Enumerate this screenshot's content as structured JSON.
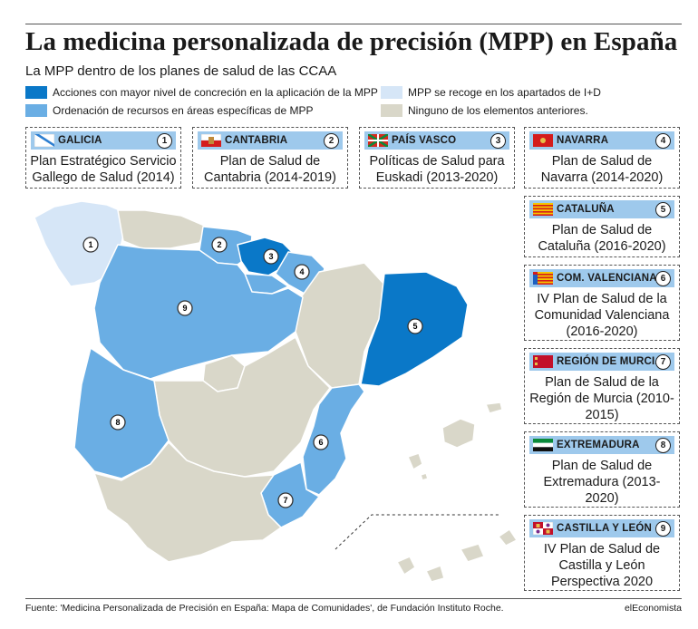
{
  "title": "La medicina personalizada de precisión (MPP) en España",
  "subtitle": "La MPP dentro de los planes de salud de las CCAA",
  "legend": [
    {
      "label": "Acciones con mayor nivel de concreción en la aplicación de la MPP",
      "color": "#0a78c8"
    },
    {
      "label": "MPP se recoge en los apartados de I+D",
      "color": "#d6e6f7"
    },
    {
      "label": "Ordenación de recursos en áreas específicas de MPP",
      "color": "#6aaee4"
    },
    {
      "label": "Ninguno de los elementos anteriores.",
      "color": "#d9d7c9"
    }
  ],
  "regions": [
    {
      "num": "1",
      "name": "GALICIA",
      "plan": "Plan Estratégico Servicio Gallego de Salud (2014)",
      "category": "MPP se recoge en los apartados de I+D"
    },
    {
      "num": "2",
      "name": "CANTABRIA",
      "plan": "Plan de Salud de Cantabria (2014-2019)",
      "category": "Ordenación de recursos en áreas específicas de MPP"
    },
    {
      "num": "3",
      "name": "PAÍS VASCO",
      "plan": "Políticas de Salud para Euskadi (2013-2020)",
      "category": "Acciones con mayor nivel de concreción en la aplicación de la MPP"
    },
    {
      "num": "4",
      "name": "NAVARRA",
      "plan": "Plan de Salud de Navarra (2014-2020)",
      "category": "Ordenación de recursos en áreas específicas de MPP"
    },
    {
      "num": "5",
      "name": "CATALUÑA",
      "plan": "Plan de Salud de Cataluña (2016-2020)",
      "category": "Acciones con mayor nivel de concreción en la aplicación de la MPP"
    },
    {
      "num": "6",
      "name": "COM. VALENCIANA",
      "plan": "IV Plan de Salud de la Comunidad Valenciana (2016-2020)",
      "category": "Ordenación de recursos en áreas específicas de MPP"
    },
    {
      "num": "7",
      "name": "REGIÓN DE MURCIA",
      "plan": "Plan de Salud de la Región de Murcia (2010-2015)",
      "category": "Ordenación de recursos en áreas específicas de MPP"
    },
    {
      "num": "8",
      "name": "EXTREMADURA",
      "plan": "Plan de Salud de Extremadura (2013-2020)",
      "category": "Ordenación de recursos en áreas específicas de MPP"
    },
    {
      "num": "9",
      "name": "CASTILLA Y LEÓN",
      "plan": "IV Plan de Salud de Castilla y León Perspectiva 2020",
      "category": "Ordenación de recursos en áreas específicas de MPP"
    }
  ],
  "footer": "Fuente: 'Medicina Personalizada de Precisión en España: Mapa de Comunidades', de Fundación Instituto Roche.",
  "brand": "elEconomista"
}
